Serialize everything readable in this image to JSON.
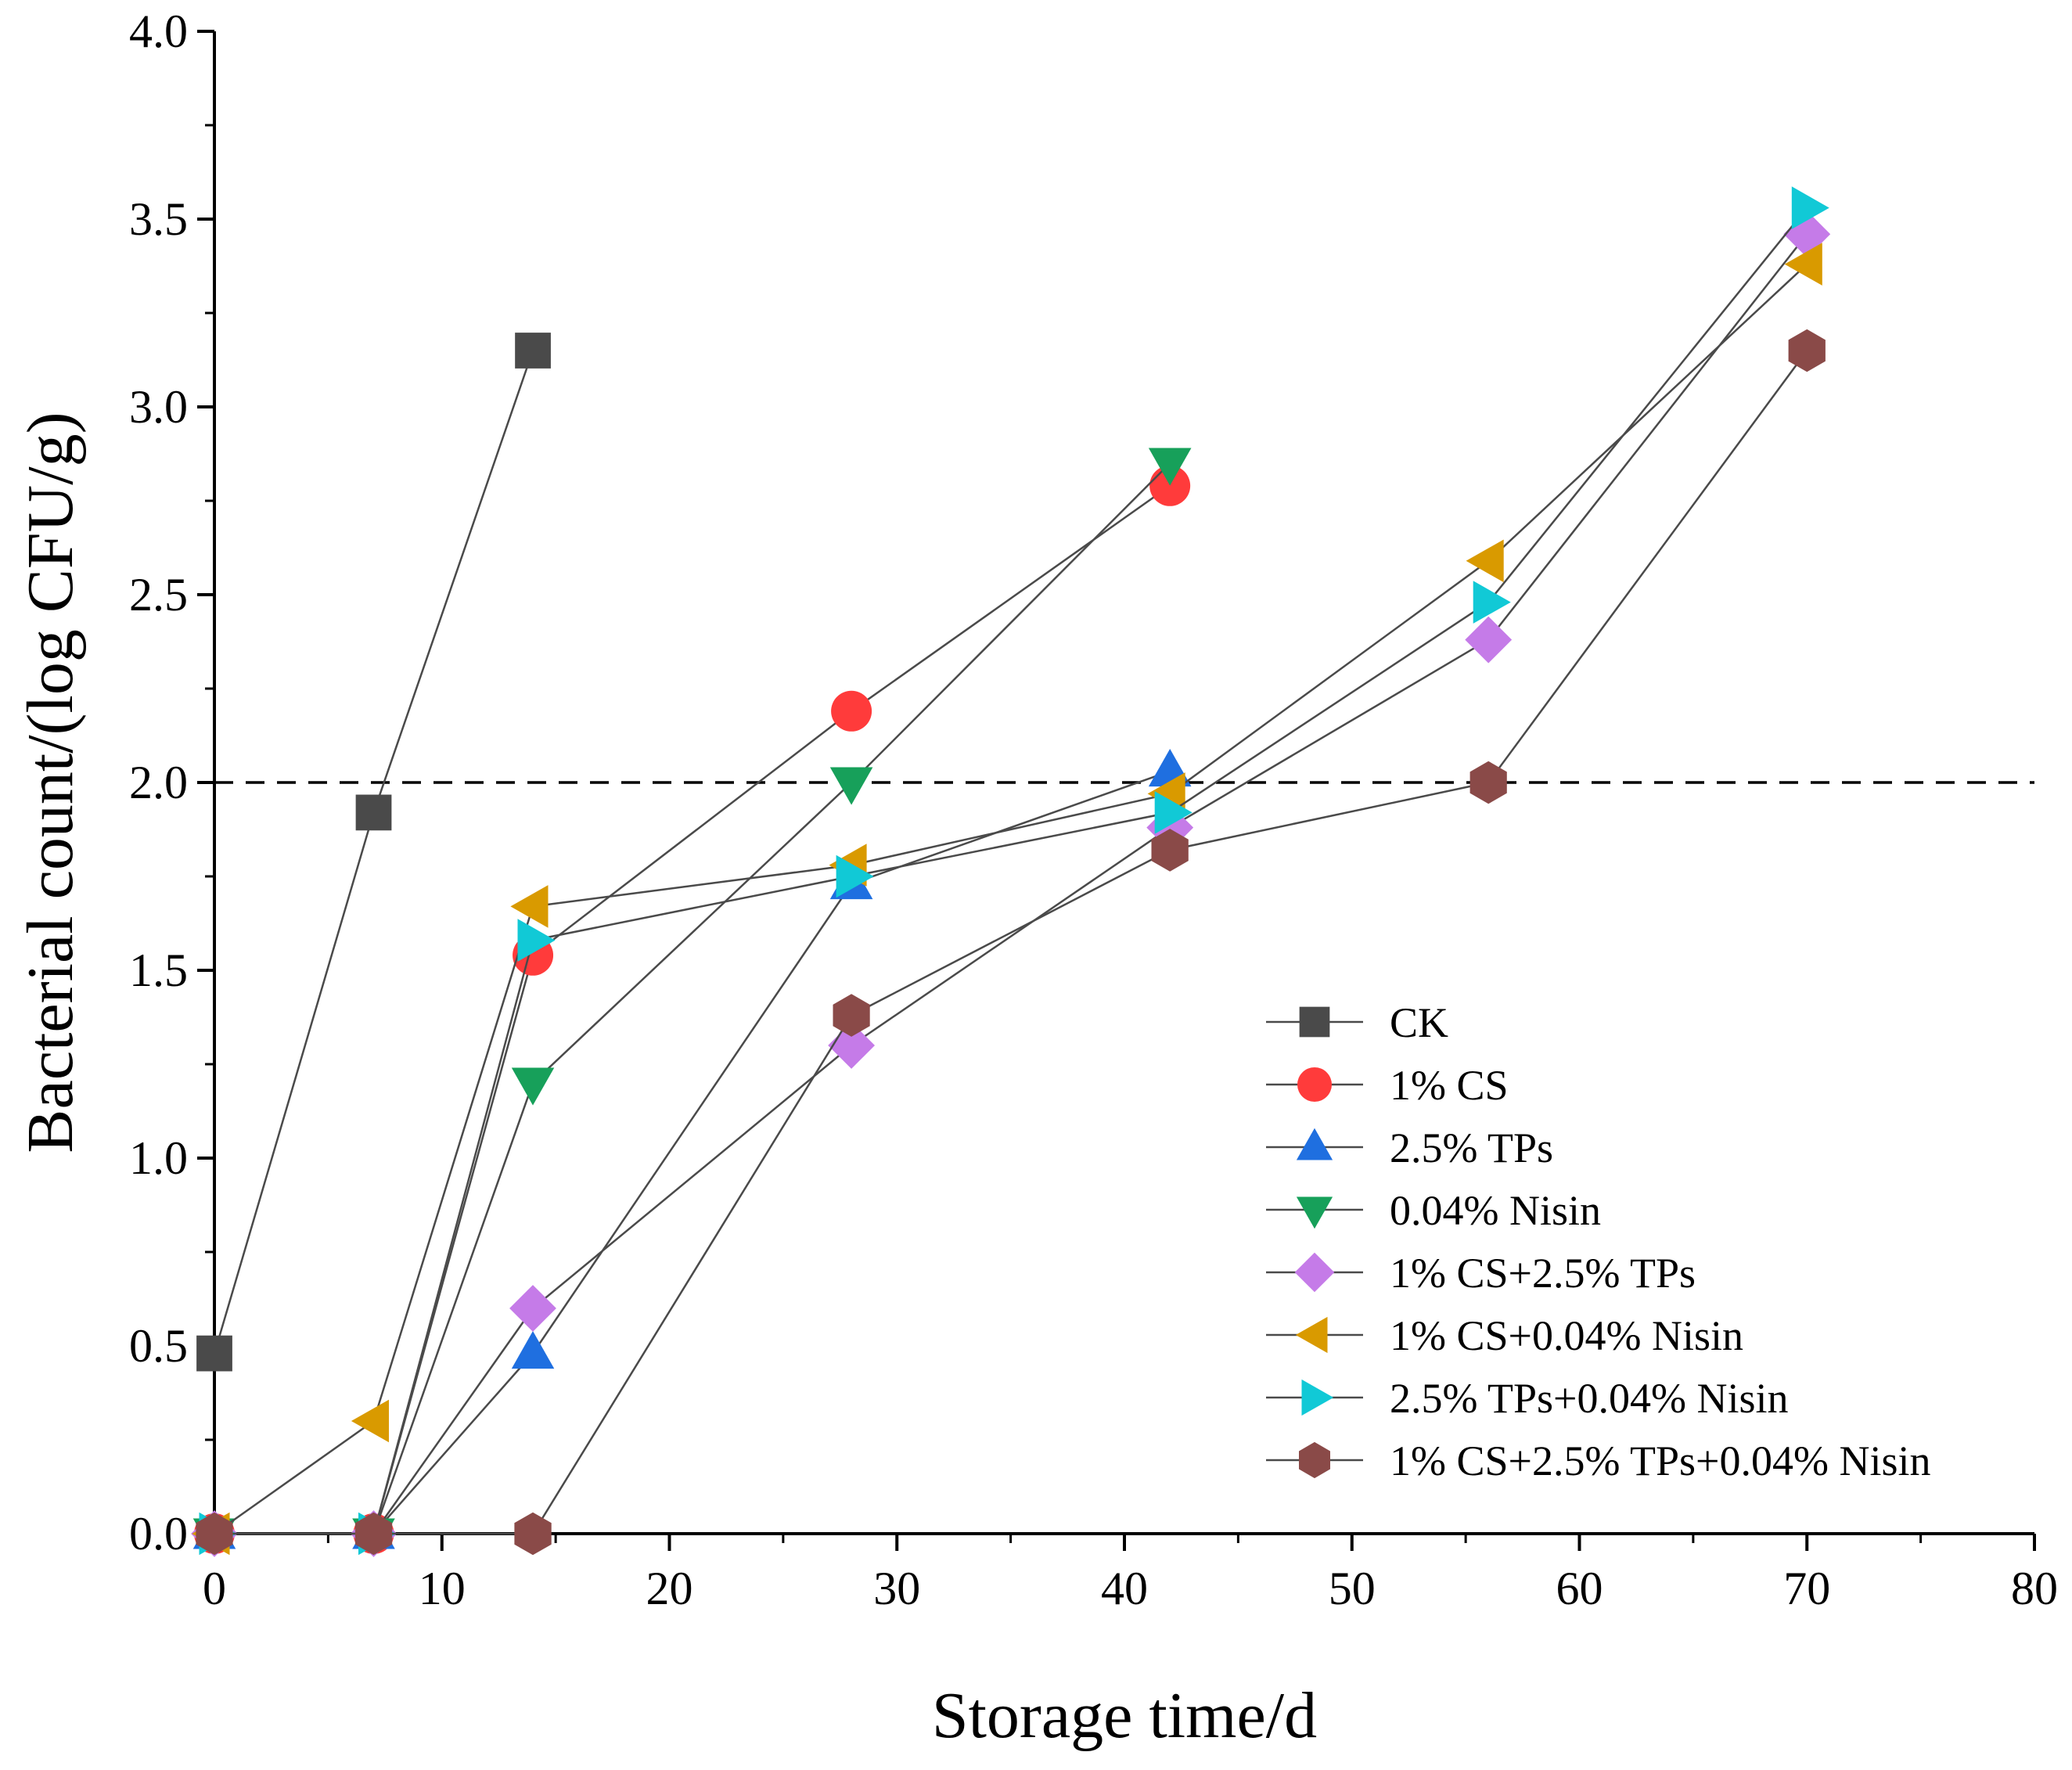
{
  "chart_data": {
    "type": "line",
    "xlabel": "Storage time/d",
    "ylabel": "Bacterial count/(log CFU/g)",
    "xlim": [
      0,
      80
    ],
    "ylim": [
      0,
      4.0
    ],
    "x_ticks": [
      0,
      10,
      20,
      30,
      40,
      50,
      60,
      70,
      80
    ],
    "x_tick_labels": [
      "0",
      "10",
      "20",
      "30",
      "40",
      "50",
      "60",
      "70",
      "80"
    ],
    "y_ticks": [
      0,
      0.5,
      1.0,
      1.5,
      2.0,
      2.5,
      3.0,
      3.5,
      4.0
    ],
    "y_tick_labels": [
      "0.0",
      "0.5",
      "1.0",
      "1.5",
      "2.0",
      "2.5",
      "3.0",
      "3.5",
      "4.0"
    ],
    "grid": false,
    "legend_position": "bottom-right",
    "reference_line": {
      "y": 2.0,
      "style": "dashed"
    },
    "series": [
      {
        "name": "CK",
        "marker": "square",
        "color": "#4a4a4a",
        "x": [
          0,
          7,
          14
        ],
        "y": [
          0.48,
          1.92,
          3.15
        ]
      },
      {
        "name": "1% CS",
        "marker": "circle",
        "color": "#ff3b3b",
        "x": [
          0,
          7,
          14,
          28,
          42
        ],
        "y": [
          0,
          0,
          1.54,
          2.19,
          2.79
        ]
      },
      {
        "name": "2.5% TPs",
        "marker": "triangle-up",
        "color": "#1f6fe0",
        "x": [
          0,
          7,
          14,
          28,
          42
        ],
        "y": [
          0,
          0,
          0.48,
          1.73,
          2.03
        ]
      },
      {
        "name": "0.04% Nisin",
        "marker": "triangle-down",
        "color": "#17a05a",
        "x": [
          0,
          7,
          14,
          28,
          42
        ],
        "y": [
          0,
          0,
          1.2,
          2.0,
          2.85
        ]
      },
      {
        "name": "1% CS+2.5% TPs",
        "marker": "diamond",
        "color": "#c57be8",
        "x": [
          0,
          7,
          14,
          28,
          42,
          56,
          70
        ],
        "y": [
          0,
          0,
          0.6,
          1.3,
          1.88,
          2.38,
          3.46
        ]
      },
      {
        "name": "1% CS+0.04% Nisin",
        "marker": "triangle-left",
        "color": "#d99a00",
        "x": [
          0,
          7,
          14,
          28,
          42,
          56,
          70
        ],
        "y": [
          0,
          0.3,
          1.67,
          1.78,
          1.97,
          2.59,
          3.38
        ]
      },
      {
        "name": "2.5% TPs+0.04% Nisin",
        "marker": "triangle-right",
        "color": "#11c9d6",
        "x": [
          0,
          7,
          14,
          28,
          42,
          56,
          70
        ],
        "y": [
          0,
          0,
          1.58,
          1.75,
          1.92,
          2.48,
          3.53
        ]
      },
      {
        "name": "1% CS+2.5% TPs+0.04% Nisin",
        "marker": "hexagon",
        "color": "#8a4a48",
        "x": [
          0,
          7,
          14,
          28,
          42,
          56,
          70
        ],
        "y": [
          0,
          0,
          0,
          1.38,
          1.82,
          2.0,
          3.15
        ]
      }
    ]
  }
}
